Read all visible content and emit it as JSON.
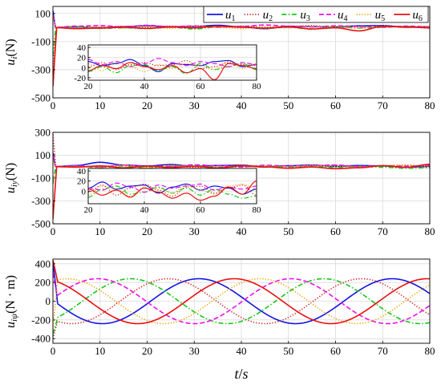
{
  "colors": {
    "u1": "#1414e6",
    "u2": "#d01818",
    "u3": "#18c818",
    "u4": "#ee10ee",
    "u5": "#f0a000",
    "u6": "#e81010"
  },
  "legend": {
    "position": "top-right",
    "entries": [
      {
        "key": "u1",
        "base": "u",
        "sub": "1",
        "dash": "solid"
      },
      {
        "key": "u2",
        "base": "u",
        "sub": "2",
        "dash": "dotted"
      },
      {
        "key": "u3",
        "base": "u",
        "sub": "3",
        "dash": "dashdot"
      },
      {
        "key": "u4",
        "base": "u",
        "sub": "4",
        "dash": "dashed"
      },
      {
        "key": "u5",
        "base": "u",
        "sub": "5",
        "dash": "dotted"
      },
      {
        "key": "u6",
        "base": "u",
        "sub": "6",
        "dash": "solid"
      }
    ]
  },
  "xlabel": {
    "base": "t",
    "rest": "/",
    "tail": "s"
  },
  "chart_data": [
    {
      "type": "line",
      "ylabel": {
        "base": "u",
        "sub": "i",
        "rest": "(N)"
      },
      "xlim": [
        0,
        80
      ],
      "ylim": [
        -500,
        150
      ],
      "xticks": [
        0,
        10,
        20,
        30,
        40,
        50,
        60,
        70,
        80
      ],
      "yticks": [
        -500,
        -300,
        -100,
        100
      ],
      "grid": true,
      "series": [
        {
          "key": "u1",
          "init": 120,
          "t1": 0.5,
          "x": [
            0,
            5,
            10,
            15,
            20,
            25,
            30,
            35,
            40,
            45,
            50,
            55,
            60,
            65,
            70,
            75,
            80
          ],
          "y": [
            0,
            4,
            -2,
            6,
            12,
            4,
            8,
            16,
            4,
            -8,
            8,
            6,
            4,
            12,
            14,
            2,
            6
          ]
        },
        {
          "key": "u2",
          "init": -300,
          "t1": 0.7,
          "x": [
            0,
            5,
            10,
            15,
            20,
            25,
            30,
            35,
            40,
            45,
            50,
            55,
            60,
            65,
            70,
            75,
            80
          ],
          "y": [
            0,
            -4,
            4,
            8,
            2,
            10,
            -4,
            6,
            10,
            4,
            6,
            14,
            -2,
            2,
            10,
            6,
            4
          ]
        },
        {
          "key": "u3",
          "init": -200,
          "t1": 0.6,
          "x": [
            0,
            5,
            10,
            15,
            20,
            25,
            30,
            35,
            40,
            45,
            50,
            55,
            60,
            65,
            70,
            75,
            80
          ],
          "y": [
            0,
            6,
            -6,
            -2,
            -8,
            2,
            -10,
            4,
            6,
            -6,
            2,
            -12,
            8,
            -4,
            2,
            8,
            -4
          ]
        },
        {
          "key": "u4",
          "init": 90,
          "t1": 0.6,
          "x": [
            0,
            5,
            10,
            15,
            20,
            25,
            30,
            35,
            40,
            45,
            50,
            55,
            60,
            65,
            70,
            75,
            80
          ],
          "y": [
            0,
            10,
            14,
            4,
            16,
            6,
            12,
            2,
            8,
            18,
            10,
            4,
            12,
            8,
            2,
            10,
            6
          ]
        },
        {
          "key": "u5",
          "init": 80,
          "t1": 0.6,
          "x": [
            0,
            5,
            10,
            15,
            20,
            25,
            30,
            35,
            40,
            45,
            50,
            55,
            60,
            65,
            70,
            75,
            80
          ],
          "y": [
            0,
            -2,
            6,
            -4,
            8,
            -6,
            10,
            2,
            -8,
            6,
            -2,
            8,
            4,
            -4,
            12,
            -2,
            8
          ]
        },
        {
          "key": "u6",
          "init": -420,
          "t1": 0.8,
          "x": [
            0,
            5,
            10,
            15,
            20,
            25,
            30,
            35,
            40,
            45,
            50,
            55,
            60,
            65,
            70,
            75,
            80
          ],
          "y": [
            0,
            -8,
            -4,
            2,
            -6,
            4,
            -2,
            10,
            2,
            -4,
            4,
            -10,
            -2,
            -24,
            8,
            4,
            -2
          ]
        }
      ],
      "inset": {
        "xlim": [
          20,
          80
        ],
        "ylim": [
          -25,
          45
        ],
        "xticks": [
          20,
          40,
          60,
          80
        ],
        "yticks": [
          -20,
          0,
          20,
          40
        ]
      }
    },
    {
      "type": "line",
      "ylabel": {
        "base": "u",
        "sub": "iy",
        "rest": "(N)"
      },
      "xlim": [
        0,
        80
      ],
      "ylim": [
        -500,
        300
      ],
      "xticks": [
        0,
        10,
        20,
        30,
        40,
        50,
        60,
        70,
        80
      ],
      "yticks": [
        -500,
        -300,
        -100,
        100,
        300
      ],
      "grid": true,
      "series": [
        {
          "key": "u1",
          "init": 120,
          "t1": 0.5,
          "x": [
            0,
            5,
            10,
            15,
            20,
            25,
            30,
            35,
            40,
            45,
            50,
            55,
            60,
            65,
            70,
            75,
            80
          ],
          "y": [
            0,
            10,
            38,
            14,
            6,
            18,
            4,
            10,
            12,
            -4,
            8,
            14,
            2,
            10,
            6,
            -6,
            4
          ]
        },
        {
          "key": "u2",
          "init": 280,
          "t1": 0.6,
          "x": [
            0,
            5,
            10,
            15,
            20,
            25,
            30,
            35,
            40,
            45,
            50,
            55,
            60,
            65,
            70,
            75,
            80
          ],
          "y": [
            0,
            -6,
            4,
            10,
            -2,
            12,
            -8,
            6,
            14,
            2,
            -10,
            8,
            10,
            -4,
            6,
            12,
            -8
          ]
        },
        {
          "key": "u3",
          "init": -150,
          "t1": 0.6,
          "x": [
            0,
            5,
            10,
            15,
            20,
            25,
            30,
            35,
            40,
            45,
            50,
            55,
            60,
            65,
            70,
            75,
            80
          ],
          "y": [
            0,
            4,
            -8,
            6,
            -12,
            4,
            10,
            -6,
            -2,
            8,
            -4,
            6,
            -8,
            4,
            -6,
            -14,
            -10
          ]
        },
        {
          "key": "u4",
          "init": 100,
          "t1": 0.5,
          "x": [
            0,
            5,
            10,
            15,
            20,
            25,
            30,
            35,
            40,
            45,
            50,
            55,
            60,
            65,
            70,
            75,
            80
          ],
          "y": [
            0,
            8,
            -4,
            14,
            6,
            2,
            16,
            8,
            -2,
            12,
            6,
            10,
            14,
            2,
            8,
            4,
            10
          ]
        },
        {
          "key": "u5",
          "init": 80,
          "t1": 0.5,
          "x": [
            0,
            5,
            10,
            15,
            20,
            25,
            30,
            35,
            40,
            45,
            50,
            55,
            60,
            65,
            70,
            75,
            80
          ],
          "y": [
            0,
            2,
            -6,
            12,
            -8,
            10,
            4,
            -10,
            8,
            6,
            -4,
            12,
            2,
            -6,
            10,
            14,
            4
          ]
        },
        {
          "key": "u6",
          "init": -460,
          "t1": 0.8,
          "x": [
            0,
            5,
            10,
            15,
            20,
            25,
            30,
            35,
            40,
            45,
            50,
            55,
            60,
            65,
            70,
            75,
            80
          ],
          "y": [
            0,
            -4,
            6,
            -10,
            4,
            -8,
            2,
            -12,
            6,
            -2,
            -14,
            -4,
            -18,
            -10,
            8,
            -6,
            20
          ]
        }
      ],
      "inset": {
        "xlim": [
          20,
          80
        ],
        "ylim": [
          -25,
          45
        ],
        "xticks": [
          20,
          40,
          60,
          80
        ],
        "yticks": [
          0,
          20,
          40
        ]
      }
    },
    {
      "type": "line",
      "ylabel": {
        "base": "u",
        "sub": "iψ",
        "rest": "(N · m)"
      },
      "xlim": [
        0,
        80
      ],
      "ylim": [
        -450,
        450
      ],
      "xticks": [
        0,
        10,
        20,
        30,
        40,
        50,
        60,
        70,
        80
      ],
      "yticks": [
        -400,
        -200,
        0,
        200,
        400
      ],
      "grid": true,
      "series": [
        {
          "key": "u1",
          "init": 420,
          "t1": 1.0,
          "amp": 240,
          "period": 41,
          "phase_t": 31
        },
        {
          "key": "u2",
          "init": -400,
          "t1": 1.0,
          "amp": 240,
          "period": 41,
          "phase_t": 24.5
        },
        {
          "key": "u3",
          "init": -350,
          "t1": 1.0,
          "amp": 240,
          "period": 41,
          "phase_t": 16.5
        },
        {
          "key": "u4",
          "init": 300,
          "t1": 1.0,
          "amp": 240,
          "period": 41,
          "phase_t": 9.5
        },
        {
          "key": "u5",
          "init": -300,
          "t1": 1.0,
          "amp": 240,
          "period": 41,
          "phase_t": 3
        },
        {
          "key": "u6",
          "init": 440,
          "t1": 1.0,
          "amp": 240,
          "period": 41,
          "phase_t": 38.5
        }
      ]
    }
  ]
}
